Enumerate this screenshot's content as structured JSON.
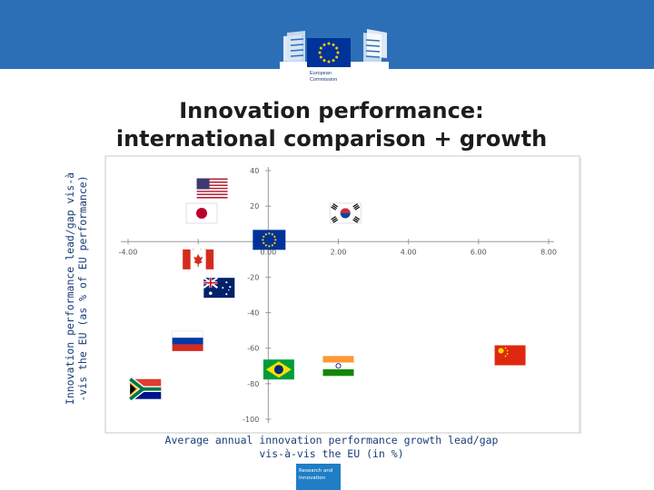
{
  "branding": {
    "logo_line1": "European",
    "logo_line2": "Commission",
    "footer_line1": "Research and",
    "footer_line2": "Innovation",
    "header_color": "#2d6fb7",
    "eu_blue": "#003399",
    "eu_gold": "#ffcc00"
  },
  "title_line1": "Innovation performance:",
  "title_line2": "international comparison + growth",
  "chart_data": {
    "type": "scatter",
    "xlabel_line1": "Average annual innovation performance growth lead/gap",
    "xlabel_line2": "vis-à-vis the EU (in %)",
    "ylabel_line1": "Innovation performance lead/gap vis-à",
    "ylabel_line2": "-vis the EU (as % of EU performance)",
    "xlim": [
      -4,
      8
    ],
    "ylim": [
      -100,
      40
    ],
    "x_ticks": [
      -4,
      -2,
      0,
      2,
      4,
      6,
      8
    ],
    "x_tick_labels": [
      "-4.00",
      "-2.00",
      "0.00",
      "2.00",
      "4.00",
      "6.00",
      "8.00"
    ],
    "y_ticks": [
      40,
      20,
      0,
      -20,
      -40,
      -60,
      -80,
      -100
    ],
    "y_tick_labels": [
      "40",
      "20",
      "0",
      "-20",
      "-40",
      "-60",
      "-80",
      "-100"
    ],
    "grid": false,
    "points": [
      {
        "name": "United States",
        "flag": "us",
        "x": -1.6,
        "y": 30
      },
      {
        "name": "Japan",
        "flag": "jp",
        "x": -1.9,
        "y": 16
      },
      {
        "name": "South Korea",
        "flag": "kr",
        "x": 2.2,
        "y": 16
      },
      {
        "name": "European Union",
        "flag": "eu",
        "x": 0.0,
        "y": 1
      },
      {
        "name": "Canada",
        "flag": "ca",
        "x": -2.0,
        "y": -10
      },
      {
        "name": "Australia",
        "flag": "au",
        "x": -1.4,
        "y": -26
      },
      {
        "name": "Russia",
        "flag": "ru",
        "x": -2.3,
        "y": -56
      },
      {
        "name": "Brazil",
        "flag": "br",
        "x": 0.3,
        "y": -72
      },
      {
        "name": "India",
        "flag": "in",
        "x": 2.0,
        "y": -70
      },
      {
        "name": "China",
        "flag": "cn",
        "x": 6.9,
        "y": -64
      },
      {
        "name": "South Africa",
        "flag": "za",
        "x": -3.5,
        "y": -83
      }
    ]
  }
}
